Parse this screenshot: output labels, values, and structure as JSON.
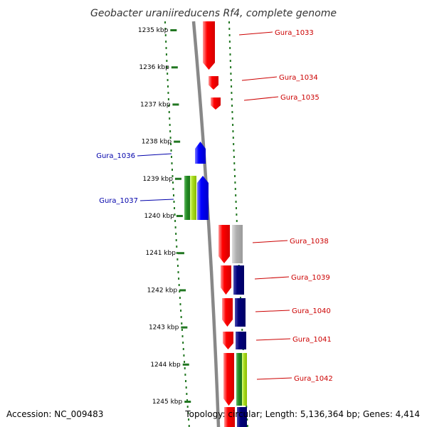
{
  "title": "Geobacter uraniireducens Rf4, complete genome",
  "footer": {
    "accession": "Accession: NC_009483",
    "summary": "Topology: circular; Length: 5,136,364 bp; Genes: 4,414"
  },
  "ruler": {
    "labels": [
      "1235 kbp",
      "1236 kbp",
      "1237 kbp",
      "1238 kbp",
      "1239 kbp",
      "1240 kbp",
      "1241 kbp",
      "1242 kbp",
      "1243 kbp",
      "1244 kbp",
      "1245 kbp"
    ]
  },
  "genes": [
    {
      "name": "Gura_1033",
      "strand": "forward",
      "color": "#cc0000"
    },
    {
      "name": "Gura_1034",
      "strand": "forward",
      "color": "#cc0000"
    },
    {
      "name": "Gura_1035",
      "strand": "forward",
      "color": "#cc0000"
    },
    {
      "name": "Gura_1036",
      "strand": "reverse",
      "color": "#0000aa"
    },
    {
      "name": "Gura_1037",
      "strand": "reverse",
      "color": "#0000aa"
    },
    {
      "name": "Gura_1038",
      "strand": "forward",
      "color": "#cc0000"
    },
    {
      "name": "Gura_1039",
      "strand": "forward",
      "color": "#cc0000"
    },
    {
      "name": "Gura_1040",
      "strand": "forward",
      "color": "#cc0000"
    },
    {
      "name": "Gura_1041",
      "strand": "forward",
      "color": "#cc0000"
    },
    {
      "name": "Gura_1042",
      "strand": "forward",
      "color": "#cc0000"
    }
  ],
  "colors": {
    "forward_gene": "#ff0000",
    "reverse_gene": "#0000ff",
    "cog_blue": "#00007a",
    "cog_gray": "#aaaaaa",
    "cog_green": "#228b22",
    "cog_lime": "#99dd00",
    "tick_green": "#227722",
    "backbone": "#888888",
    "forward_label": "#cc0000",
    "reverse_label": "#0000aa"
  }
}
